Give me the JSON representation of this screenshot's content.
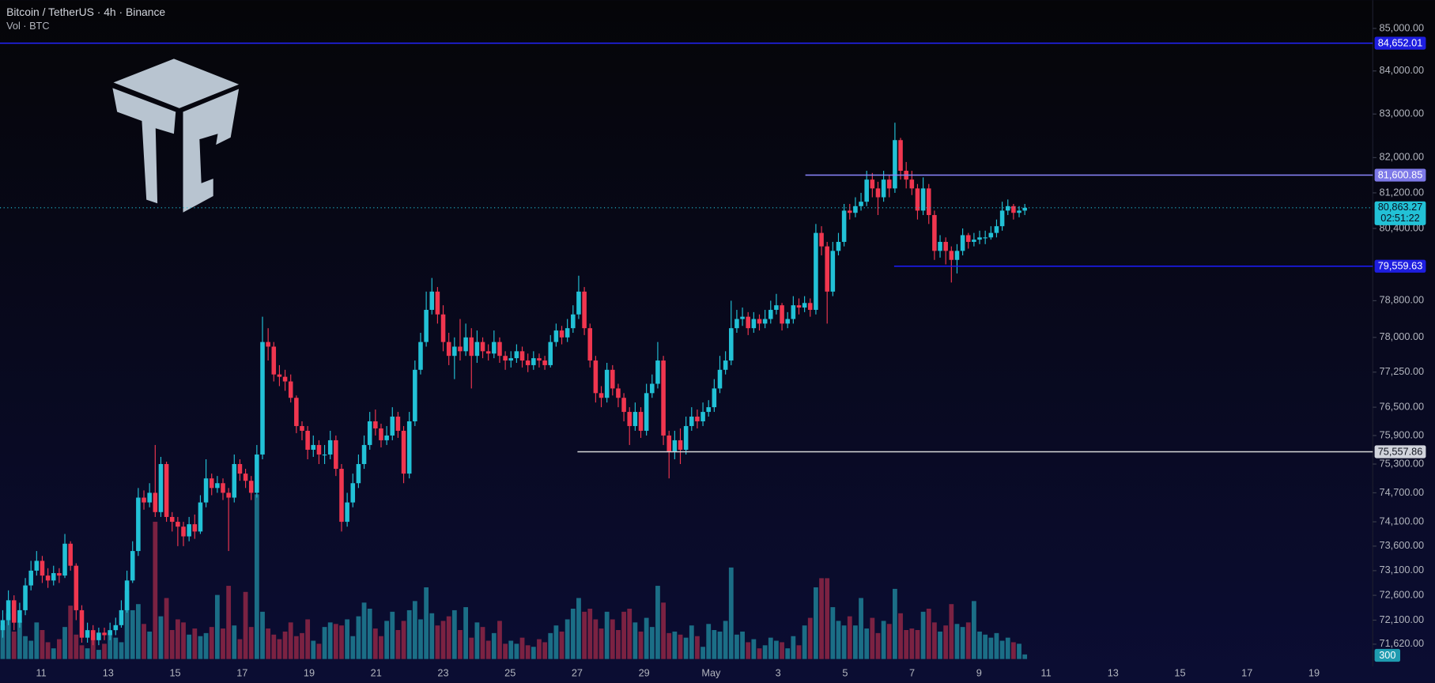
{
  "header": {
    "title": "Bitcoin / TetherUS · 4h · Binance",
    "subtitle": "Vol · BTC"
  },
  "chart_data": {
    "type": "candlestick",
    "log_scale": true,
    "grid": false,
    "ylim": [
      71180,
      85670
    ],
    "yticks": [
      {
        "value": 85000,
        "label": "85,000.00"
      },
      {
        "value": 84000,
        "label": "84,000.00"
      },
      {
        "value": 83000,
        "label": "83,000.00"
      },
      {
        "value": 82000,
        "label": "82,000.00"
      },
      {
        "value": 81200,
        "label": "81,200.00"
      },
      {
        "value": 80400,
        "label": "80,400.00"
      },
      {
        "value": 78800,
        "label": "78,800.00"
      },
      {
        "value": 78000,
        "label": "78,000.00"
      },
      {
        "value": 77250,
        "label": "77,250.00"
      },
      {
        "value": 76500,
        "label": "76,500.00"
      },
      {
        "value": 75900,
        "label": "75,900.00"
      },
      {
        "value": 75300,
        "label": "75,300.00"
      },
      {
        "value": 74700,
        "label": "74,700.00"
      },
      {
        "value": 74100,
        "label": "74,100.00"
      },
      {
        "value": 73600,
        "label": "73,600.00"
      },
      {
        "value": 73100,
        "label": "73,100.00"
      },
      {
        "value": 72600,
        "label": "72,600.00"
      },
      {
        "value": 72100,
        "label": "72,100.00"
      },
      {
        "value": 71620,
        "label": "71,620.00"
      }
    ],
    "xticks": [
      "11",
      "13",
      "15",
      "17",
      "19",
      "21",
      "23",
      "25",
      "27",
      "29",
      "May",
      "3",
      "5",
      "7",
      "9",
      "11",
      "13",
      "15",
      "17",
      "19"
    ],
    "up_color": "#22c1d6",
    "down_color": "#f0364f",
    "volume_up_color": "#1b6e86",
    "volume_down_color": "#7b2242",
    "open": [
      71900,
      72100,
      72500,
      72050,
      72300,
      72800,
      73100,
      73300,
      73000,
      72900,
      73050,
      73000,
      73650,
      73200,
      72300,
      71750,
      71900,
      71700,
      71850,
      71800,
      71900,
      72000,
      72300,
      72900,
      73500,
      74600,
      74500,
      74700,
      74300,
      75300,
      74200,
      74100,
      74000,
      73800,
      74050,
      73900,
      74500,
      75000,
      74800,
      74900,
      74700,
      74600,
      75300,
      75100,
      74950,
      74700,
      75500,
      77900,
      77800,
      77200,
      77150,
      77050,
      76700,
      76100,
      76000,
      75600,
      75700,
      75500,
      75500,
      75800,
      75200,
      74100,
      74500,
      74900,
      75300,
      75700,
      76200,
      76050,
      75800,
      75900,
      76300,
      76000,
      75100,
      76200,
      77300,
      77900,
      78600,
      79000,
      78500,
      77900,
      77600,
      77800,
      77700,
      78000,
      77600,
      77900,
      77700,
      77650,
      77900,
      77600,
      77500,
      77550,
      77700,
      77500,
      77400,
      77550,
      77500,
      77400,
      77900,
      78150,
      78000,
      78200,
      78500,
      79000,
      78200,
      77500,
      76800,
      76700,
      77300,
      76900,
      76700,
      76400,
      76100,
      76400,
      76000,
      76800,
      77000,
      77500,
      75900,
      75550,
      75800,
      75600,
      76100,
      76300,
      76200,
      76400,
      76500,
      76900,
      77300,
      77500,
      78200,
      78400,
      78450,
      78200,
      78400,
      78300,
      78400,
      78600,
      78700,
      78300,
      78400,
      78700,
      78650,
      78750,
      78600,
      80300,
      80000,
      79000,
      79900,
      80100,
      80800,
      80750,
      80900,
      81000,
      81500,
      81300,
      81100,
      81500,
      81300,
      82400,
      81700,
      81500,
      81300,
      80800,
      81300,
      80700,
      79900,
      80100,
      79900,
      79700,
      79900,
      80250,
      80100,
      80150,
      80200,
      80200,
      80300,
      80450,
      80800,
      80900,
      80750,
      80800
    ],
    "high": [
      72300,
      72700,
      72600,
      72450,
      72950,
      73300,
      73500,
      73400,
      73150,
      73200,
      73150,
      73850,
      73700,
      73250,
      72400,
      72050,
      72000,
      71950,
      71950,
      72050,
      72150,
      72500,
      73100,
      73700,
      74800,
      74750,
      74900,
      75700,
      75450,
      75350,
      74300,
      74200,
      74100,
      74200,
      74250,
      74650,
      75400,
      75100,
      75050,
      75000,
      74800,
      75500,
      75400,
      75200,
      75050,
      75700,
      78450,
      78200,
      77900,
      77400,
      77300,
      77200,
      76750,
      76200,
      76100,
      75900,
      75800,
      75700,
      76000,
      75900,
      75300,
      74700,
      75100,
      75500,
      75900,
      76400,
      76450,
      76150,
      76100,
      76500,
      76400,
      76100,
      76400,
      77500,
      78100,
      79000,
      79300,
      79100,
      78700,
      78100,
      78000,
      78400,
      78300,
      78200,
      78150,
      78000,
      77850,
      78150,
      78000,
      77700,
      77700,
      77850,
      77800,
      77650,
      77700,
      77650,
      77600,
      78050,
      78300,
      78250,
      78400,
      78700,
      79350,
      79100,
      78300,
      77600,
      76950,
      77450,
      77400,
      77000,
      76800,
      76500,
      76600,
      76500,
      77000,
      77200,
      77900,
      77600,
      76000,
      76000,
      76050,
      76300,
      76500,
      76450,
      76600,
      76650,
      77100,
      77600,
      77700,
      78800,
      78600,
      78650,
      78550,
      78550,
      78500,
      78600,
      78800,
      78950,
      78750,
      78550,
      78900,
      78850,
      78900,
      78850,
      80500,
      80450,
      80100,
      80100,
      80300,
      80950,
      80950,
      81100,
      81200,
      81700,
      81650,
      81450,
      81700,
      81600,
      82800,
      82450,
      81900,
      81700,
      81400,
      81550,
      81400,
      80800,
      80250,
      80200,
      80000,
      80050,
      80400,
      80300,
      80300,
      80350,
      80350,
      80450,
      80600,
      81000,
      81050,
      80950,
      80900,
      80950
    ],
    "low": [
      71750,
      72000,
      71900,
      71950,
      72200,
      72700,
      73000,
      72850,
      72750,
      72800,
      72850,
      72950,
      73100,
      72100,
      71650,
      71650,
      71600,
      71600,
      71700,
      71700,
      71800,
      71950,
      72250,
      72850,
      73400,
      74350,
      74400,
      74200,
      74200,
      74100,
      73900,
      73600,
      73600,
      73700,
      73750,
      73850,
      74400,
      74650,
      74700,
      74550,
      73500,
      74500,
      74950,
      74800,
      74550,
      74600,
      75400,
      77500,
      77050,
      76950,
      76850,
      76600,
      75950,
      75800,
      75400,
      75450,
      75300,
      75300,
      75400,
      75050,
      73900,
      74000,
      74400,
      74800,
      75200,
      75600,
      75900,
      75650,
      75700,
      75800,
      75850,
      74900,
      75000,
      76100,
      77200,
      77800,
      78500,
      78300,
      77700,
      77400,
      77100,
      77500,
      77600,
      76900,
      77450,
      77550,
      77500,
      77550,
      77450,
      77300,
      77350,
      77450,
      77350,
      77250,
      77300,
      77350,
      77300,
      77350,
      77800,
      77850,
      77900,
      78100,
      78400,
      78050,
      77350,
      76600,
      76500,
      76600,
      76750,
      76500,
      76200,
      75700,
      76000,
      75850,
      75900,
      76700,
      76900,
      75700,
      75000,
      75400,
      75300,
      75500,
      76000,
      76050,
      76100,
      76300,
      76400,
      76800,
      77200,
      77400,
      78100,
      78250,
      78050,
      78100,
      78150,
      78200,
      78300,
      78500,
      78150,
      78200,
      78300,
      78500,
      78550,
      78450,
      78500,
      79800,
      78300,
      78900,
      79800,
      80000,
      80600,
      80650,
      80800,
      80900,
      81100,
      80700,
      81000,
      81100,
      81200,
      81500,
      81300,
      81150,
      80600,
      80700,
      80500,
      79700,
      79750,
      79600,
      79200,
      79400,
      79800,
      79950,
      80000,
      80050,
      80050,
      80150,
      80200,
      80350,
      80700,
      80600,
      80650,
      80700
    ],
    "close": [
      72100,
      72500,
      72050,
      72300,
      72800,
      73100,
      73300,
      73000,
      72900,
      73050,
      73000,
      73650,
      73200,
      72300,
      71750,
      71900,
      71700,
      71850,
      71800,
      71900,
      72000,
      72300,
      72900,
      73500,
      74600,
      74500,
      74700,
      74300,
      75300,
      74200,
      74100,
      74000,
      73800,
      74050,
      73900,
      74500,
      75000,
      74800,
      74900,
      74700,
      74600,
      75300,
      75100,
      74950,
      74700,
      75500,
      77900,
      77800,
      77200,
      77150,
      77050,
      76700,
      76100,
      76000,
      75600,
      75700,
      75500,
      75500,
      75800,
      75200,
      74100,
      74500,
      74900,
      75300,
      75700,
      76200,
      76050,
      75800,
      75900,
      76300,
      76000,
      75100,
      76200,
      77300,
      77900,
      78600,
      79000,
      78500,
      77900,
      77600,
      77800,
      77700,
      78000,
      77600,
      77900,
      77700,
      77650,
      77900,
      77600,
      77500,
      77550,
      77700,
      77500,
      77400,
      77550,
      77500,
      77400,
      77900,
      78150,
      78000,
      78200,
      78500,
      79000,
      78200,
      77500,
      76800,
      76700,
      77300,
      76900,
      76700,
      76400,
      76100,
      76400,
      76000,
      76800,
      77000,
      77500,
      75900,
      75550,
      75800,
      75600,
      76100,
      76300,
      76200,
      76400,
      76500,
      76900,
      77300,
      77500,
      78200,
      78400,
      78450,
      78200,
      78400,
      78300,
      78400,
      78600,
      78700,
      78300,
      78400,
      78700,
      78650,
      78750,
      78600,
      80300,
      80000,
      79000,
      79900,
      80100,
      80800,
      80750,
      80900,
      81000,
      81500,
      81300,
      81100,
      81500,
      81300,
      82400,
      81700,
      81500,
      81300,
      80800,
      81300,
      80700,
      79900,
      80100,
      79900,
      79700,
      79900,
      80250,
      80100,
      80150,
      80200,
      80200,
      80300,
      80450,
      80800,
      80900,
      80750,
      80800,
      80863.27
    ],
    "volume": [
      2200,
      3000,
      1800,
      2500,
      1500,
      1200,
      2400,
      1900,
      1100,
      700,
      1300,
      2100,
      3500,
      1600,
      900,
      700,
      1400,
      600,
      1000,
      1700,
      1400,
      1100,
      4500,
      3200,
      3600,
      2300,
      1800,
      9000,
      2800,
      4000,
      1900,
      2600,
      2400,
      1600,
      2000,
      1500,
      1700,
      2100,
      4200,
      2000,
      4800,
      2200,
      1300,
      4400,
      2100,
      10800,
      3100,
      2000,
      1600,
      1300,
      1800,
      2400,
      1500,
      1700,
      2600,
      1200,
      1000,
      2100,
      2400,
      2300,
      2200,
      2600,
      1500,
      2800,
      3700,
      3300,
      2000,
      1500,
      2500,
      3100,
      1900,
      2500,
      3200,
      3800,
      2600,
      4700,
      3000,
      2200,
      2500,
      2800,
      3200,
      1900,
      3400,
      1400,
      2400,
      2100,
      1200,
      1700,
      2500,
      1000,
      1200,
      1000,
      1400,
      900,
      800,
      1300,
      1100,
      1700,
      2200,
      1800,
      2600,
      3300,
      4000,
      3100,
      3300,
      2600,
      2000,
      3100,
      2600,
      1900,
      3100,
      3300,
      2400,
      1800,
      2700,
      2100,
      4800,
      3700,
      1700,
      1800,
      1600,
      1400,
      2200,
      1500,
      800,
      2300,
      1900,
      1800,
      2500,
      6000,
      1600,
      1800,
      1100,
      1300,
      700,
      900,
      1400,
      1200,
      1100,
      700,
      1500,
      900,
      2200,
      2700,
      4700,
      5300,
      5300,
      3400,
      2500,
      2200,
      2800,
      2200,
      4000,
      2000,
      2700,
      1700,
      2500,
      2300,
      4600,
      3000,
      1900,
      2000,
      1900,
      3100,
      3300,
      2400,
      1800,
      2200,
      3600,
      2300,
      2100,
      2400,
      3800,
      1800,
      1600,
      1400,
      1700,
      1200,
      1400,
      1100,
      1000,
      300
    ],
    "price_lines": [
      {
        "value": 84652.01,
        "label": "84,652.01",
        "color": "#2424ff",
        "box_color": "#1e1ee0",
        "text_color": "#ffffff"
      },
      {
        "value": 81600.85,
        "label": "81,600.85",
        "color": "#8b87ff",
        "box_color": "#7d79e8",
        "text_color": "#ffffff"
      },
      {
        "value": 79559.63,
        "label": "79,559.63",
        "color": "#1c1cff",
        "box_color": "#1e1ee0",
        "text_color": "#ffffff"
      },
      {
        "value": 75557.86,
        "label": "75,557.86",
        "color": "#d8d8d8",
        "box_color": "#d1d4dc",
        "text_color": "#131722"
      }
    ],
    "last_price": {
      "value": 80863.27,
      "label": "80,863.27",
      "countdown": "02:51:22",
      "color": "#22c1d6"
    }
  }
}
